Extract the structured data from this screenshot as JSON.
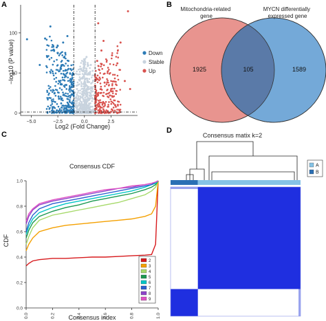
{
  "panels": {
    "a": {
      "letter": "A",
      "chart_data": {
        "type": "scatter",
        "title": "",
        "xlabel": "Log2 (Fold Change)",
        "ylabel": "−log10 (P value)",
        "xlim": [
          -6,
          5
        ],
        "ylim": [
          -3,
          135
        ],
        "x_ticks": [
          -5.0,
          -2.5,
          0.0,
          2.5
        ],
        "x_tick_labels": [
          "−5.0",
          "−2.5",
          "0.0",
          "2.5"
        ],
        "y_ticks": [
          0,
          50,
          100
        ],
        "y_tick_labels": [
          "0",
          "50",
          "100"
        ],
        "thresholds": {
          "x": [
            -1,
            1
          ],
          "y": 1.3
        },
        "legend": {
          "placement": "right",
          "entries": [
            {
              "label": "Down",
              "color": "#2c7bb6"
            },
            {
              "label": "Stable",
              "color": "#c8d3de"
            },
            {
              "label": "Up",
              "color": "#d9534f"
            }
          ]
        },
        "series": [
          {
            "name": "Down",
            "color": "#2c7bb6",
            "points": [
              [
                -5.4,
                92
              ],
              [
                -3.7,
                93
              ],
              [
                -3.2,
                108
              ],
              [
                -2.6,
                82
              ],
              [
                -2.1,
                60
              ],
              [
                -1.8,
                75
              ],
              [
                -1.6,
                96
              ],
              [
                -2.4,
                40
              ],
              [
                -3.0,
                52
              ],
              [
                -1.4,
                30
              ],
              [
                -1.9,
                48
              ],
              [
                -1.2,
                12
              ],
              [
                -2.8,
                25
              ],
              [
                -1.5,
                65
              ],
              [
                -3.5,
                70
              ],
              [
                -2.2,
                18
              ],
              [
                -1.7,
                35
              ],
              [
                -4.2,
                60
              ],
              [
                -1.3,
                55
              ],
              [
                -2.0,
                88
              ]
            ]
          },
          {
            "name": "Stable",
            "color": "#c8d3de",
            "points": [
              [
                0,
                10
              ],
              [
                0.3,
                40
              ],
              [
                -0.4,
                55
              ],
              [
                0.6,
                60
              ],
              [
                -0.7,
                30
              ],
              [
                0.2,
                70
              ],
              [
                -0.2,
                20
              ]
            ]
          },
          {
            "name": "Up",
            "color": "#d9534f",
            "points": [
              [
                4.1,
                127
              ],
              [
                1.3,
                112
              ],
              [
                1.8,
                90
              ],
              [
                2.6,
                72
              ],
              [
                3.1,
                62
              ],
              [
                3.8,
                40
              ],
              [
                2.2,
                52
              ],
              [
                1.5,
                25
              ],
              [
                4.3,
                30
              ],
              [
                1.9,
                38
              ],
              [
                2.9,
                10
              ],
              [
                1.2,
                65
              ],
              [
                3.4,
                88
              ],
              [
                1.6,
                78
              ],
              [
                2.4,
                22
              ]
            ]
          }
        ]
      }
    },
    "b": {
      "letter": "B",
      "chart_data": {
        "type": "venn",
        "sets": [
          {
            "name": "Mitochondria-related gene",
            "color": "#e8948f"
          },
          {
            "name": "MYCN differentially expressed gene",
            "color": "#74a9d8"
          }
        ],
        "set_label_lines": [
          [
            "Mitochondria-related",
            "gene"
          ],
          [
            "MYCN differentially",
            "expressed gene"
          ]
        ],
        "counts": {
          "left_only": "1925",
          "both": "105",
          "right_only": "1589"
        },
        "intersection_color": "#5a7aa8"
      }
    },
    "c": {
      "letter": "C",
      "chart_data": {
        "type": "line",
        "title": "Consensus CDF",
        "xlabel": "Consensus index",
        "ylabel": "CDF",
        "xlim": [
          0,
          1
        ],
        "ylim": [
          0,
          1
        ],
        "x_ticks": [
          0.0,
          0.2,
          0.4,
          0.6,
          0.8,
          1.0
        ],
        "x_tick_labels": [
          "0.0",
          "0.2",
          "0.4",
          "0.6",
          "0.8",
          "1.0"
        ],
        "y_ticks": [
          0.0,
          0.2,
          0.4,
          0.6,
          0.8,
          1.0
        ],
        "y_tick_labels": [
          "0.0",
          "0.2",
          "0.4",
          "0.6",
          "0.8",
          "1.0"
        ],
        "legend": {
          "placement": "bottom-right"
        },
        "x": [
          0,
          0.02,
          0.05,
          0.1,
          0.2,
          0.3,
          0.4,
          0.5,
          0.6,
          0.7,
          0.8,
          0.9,
          0.95,
          0.98,
          1.0
        ],
        "series": [
          {
            "name": "2",
            "color": "#d7191c",
            "values": [
              0.33,
              0.35,
              0.37,
              0.38,
              0.39,
              0.39,
              0.395,
              0.4,
              0.4,
              0.405,
              0.41,
              0.415,
              0.42,
              0.5,
              1.0
            ]
          },
          {
            "name": "3",
            "color": "#f4a000",
            "values": [
              0.45,
              0.5,
              0.55,
              0.6,
              0.63,
              0.65,
              0.66,
              0.67,
              0.68,
              0.69,
              0.7,
              0.72,
              0.74,
              0.8,
              1.0
            ]
          },
          {
            "name": "4",
            "color": "#a6d96a",
            "values": [
              0.5,
              0.56,
              0.63,
              0.69,
              0.73,
              0.75,
              0.77,
              0.79,
              0.81,
              0.83,
              0.86,
              0.89,
              0.92,
              0.95,
              1.0
            ]
          },
          {
            "name": "5",
            "color": "#1a9850",
            "values": [
              0.55,
              0.61,
              0.67,
              0.72,
              0.76,
              0.79,
              0.81,
              0.84,
              0.86,
              0.88,
              0.9,
              0.93,
              0.95,
              0.97,
              1.0
            ]
          },
          {
            "name": "6",
            "color": "#00c5c5",
            "values": [
              0.58,
              0.64,
              0.7,
              0.75,
              0.79,
              0.82,
              0.84,
              0.86,
              0.88,
              0.9,
              0.92,
              0.95,
              0.97,
              0.98,
              1.0
            ]
          },
          {
            "name": "7",
            "color": "#2b5fd0",
            "values": [
              0.6,
              0.67,
              0.73,
              0.78,
              0.82,
              0.84,
              0.86,
              0.88,
              0.9,
              0.92,
              0.94,
              0.96,
              0.97,
              0.99,
              1.0
            ]
          },
          {
            "name": "8",
            "color": "#8e44c9",
            "values": [
              0.66,
              0.72,
              0.77,
              0.81,
              0.84,
              0.86,
              0.88,
              0.9,
              0.92,
              0.94,
              0.95,
              0.97,
              0.98,
              0.99,
              1.0
            ]
          },
          {
            "name": "9",
            "color": "#e052c4",
            "values": [
              0.68,
              0.74,
              0.78,
              0.82,
              0.85,
              0.87,
              0.89,
              0.91,
              0.93,
              0.94,
              0.96,
              0.97,
              0.98,
              0.99,
              1.0
            ]
          }
        ]
      }
    },
    "d": {
      "letter": "D",
      "chart_data": {
        "type": "heatmap",
        "title": "Consensus matix k=2",
        "clusters": [
          {
            "label": "A",
            "color": "#86c3e6"
          },
          {
            "label": "B",
            "color": "#2a6fb4"
          }
        ],
        "cluster_sizes": [
          0.21,
          0.79
        ],
        "low_color": "#ffffff",
        "high_color": "#1f2fe0"
      }
    }
  }
}
